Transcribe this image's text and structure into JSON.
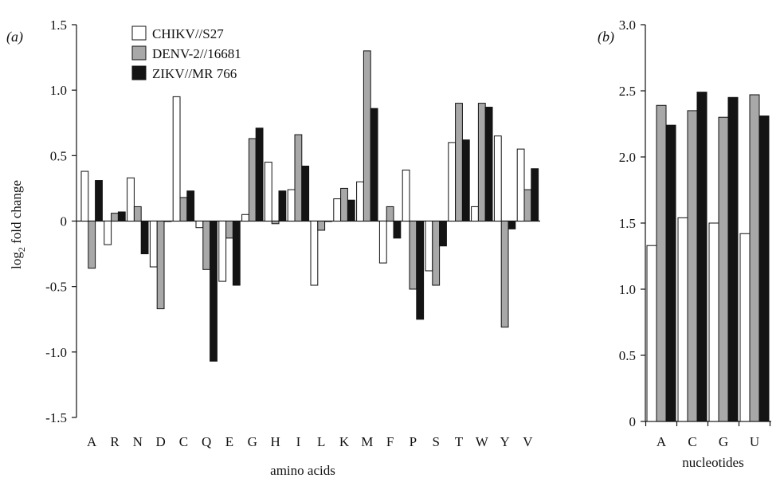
{
  "colors": {
    "CHIKV": "#ffffff",
    "DENV": "#a8a8a8",
    "ZIKV": "#141414"
  },
  "chart_data": [
    {
      "type": "bar",
      "panel_label": "(a)",
      "xlabel": "amino acids",
      "ylabel": "log",
      "ylabel_sub": "2",
      "ylabel_rest": " fold change",
      "ylim": [
        -1.5,
        1.5
      ],
      "yticks": [
        "-1.5",
        "-1.0",
        "-0.5",
        "0",
        "0.5",
        "1.0",
        "1.5"
      ],
      "ytick_values": [
        -1.5,
        -1.0,
        -0.5,
        0,
        0.5,
        1.0,
        1.5
      ],
      "legend": "top-left",
      "categories": [
        "A",
        "R",
        "N",
        "D",
        "C",
        "Q",
        "E",
        "G",
        "H",
        "I",
        "L",
        "K",
        "M",
        "F",
        "P",
        "S",
        "T",
        "W",
        "Y",
        "V"
      ],
      "series": [
        {
          "name": "CHIKV//S27",
          "color_key": "CHIKV",
          "values": [
            0.38,
            -0.18,
            0.33,
            -0.35,
            0.95,
            -0.05,
            -0.46,
            0.05,
            0.45,
            0.24,
            -0.49,
            0.17,
            0.3,
            -0.32,
            0.39,
            -0.38,
            0.6,
            0.11,
            0.65,
            0.55
          ]
        },
        {
          "name": "DENV-2//16681",
          "color_key": "DENV",
          "values": [
            -0.36,
            0.06,
            0.11,
            -0.67,
            0.18,
            -0.37,
            -0.13,
            0.63,
            -0.02,
            0.66,
            -0.07,
            0.25,
            1.3,
            0.11,
            -0.52,
            -0.49,
            0.9,
            0.9,
            -0.81,
            0.24
          ]
        },
        {
          "name": "ZIKV//MR 766",
          "color_key": "ZIKV",
          "values": [
            0.31,
            0.07,
            -0.25,
            0.0,
            0.23,
            -1.07,
            -0.49,
            0.71,
            0.23,
            0.42,
            0.0,
            0.16,
            0.86,
            -0.13,
            -0.75,
            -0.19,
            0.62,
            0.87,
            -0.06,
            0.4
          ]
        }
      ]
    },
    {
      "type": "bar",
      "panel_label": "(b)",
      "xlabel": "nucleotides",
      "ylim": [
        0,
        3.0
      ],
      "yticks": [
        "0",
        "0.5",
        "1.0",
        "1.5",
        "2.0",
        "2.5",
        "3.0"
      ],
      "ytick_values": [
        0,
        0.5,
        1.0,
        1.5,
        2.0,
        2.5,
        3.0
      ],
      "categories": [
        "A",
        "C",
        "G",
        "U"
      ],
      "series": [
        {
          "name": "CHIKV//S27",
          "color_key": "CHIKV",
          "values": [
            1.33,
            1.54,
            1.5,
            1.42
          ]
        },
        {
          "name": "DENV-2//16681",
          "color_key": "DENV",
          "values": [
            2.39,
            2.35,
            2.3,
            2.47
          ]
        },
        {
          "name": "ZIKV//MR 766",
          "color_key": "ZIKV",
          "values": [
            2.24,
            2.49,
            2.45,
            2.31
          ]
        }
      ]
    }
  ]
}
